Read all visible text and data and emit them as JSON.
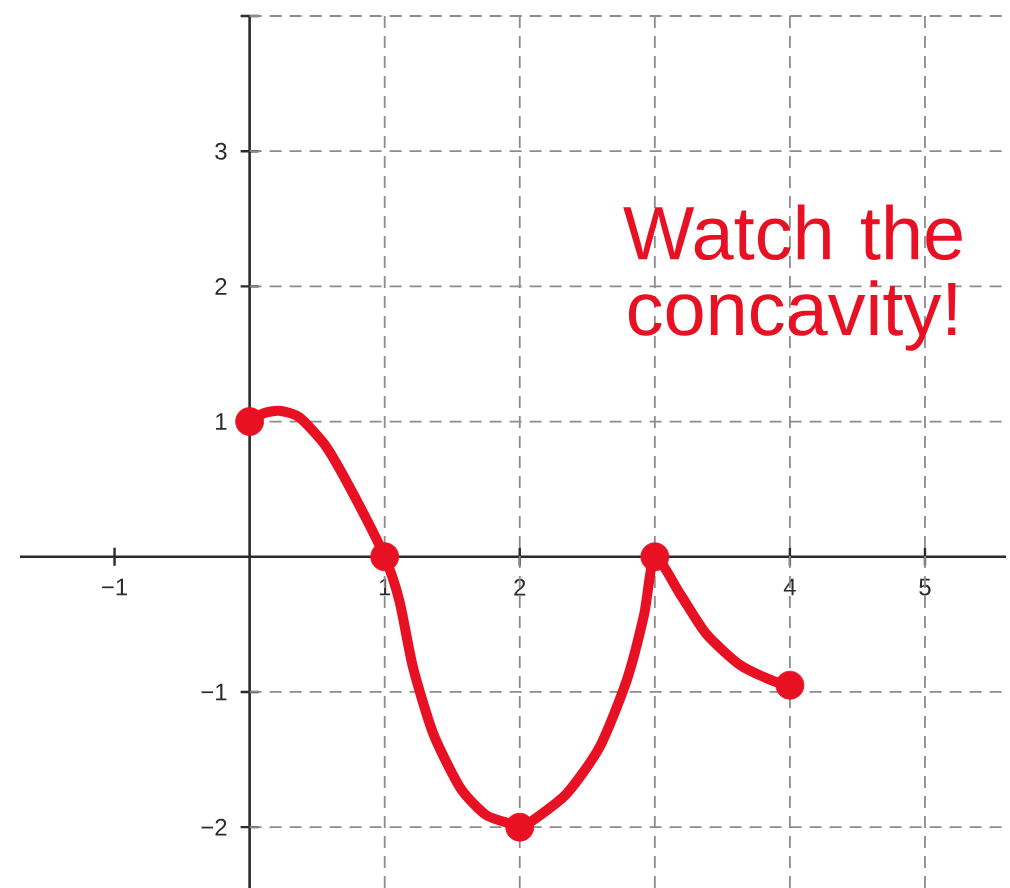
{
  "chart_data": {
    "type": "line",
    "series": [
      {
        "color": "#e81123",
        "x": [
          0,
          0.1,
          0.22,
          0.37,
          0.57,
          0.77,
          1,
          1.11,
          1.21,
          1.36,
          1.56,
          1.75,
          1.95,
          2,
          2.04,
          2.34,
          2.59,
          2.79,
          2.92,
          3,
          3.19,
          3.38,
          3.63,
          3.88,
          4
        ],
        "values": [
          1,
          1.06,
          1.08,
          1.03,
          0.81,
          0.46,
          0,
          -0.33,
          -0.82,
          -1.31,
          -1.71,
          -1.91,
          -1.98,
          -2,
          -1.99,
          -1.76,
          -1.41,
          -0.92,
          -0.43,
          0,
          -0.28,
          -0.57,
          -0.8,
          -0.92,
          -0.95
        ],
        "marker": "none",
        "line_style": "solid"
      },
      {
        "type": "scatter",
        "color": "#e81123",
        "x": [
          0,
          1,
          2,
          3,
          4
        ],
        "values": [
          1,
          0,
          -2,
          0,
          -0.95
        ],
        "marker": "circle"
      }
    ],
    "xlim": [
      -1.7,
      5.6
    ],
    "ylim": [
      -2.45,
      4
    ],
    "xticks": [
      {
        "value": -1,
        "label": "−1"
      },
      1,
      2,
      {
        "value": 3,
        "label": null
      },
      4,
      5
    ],
    "yticks": [
      {
        "value": -2,
        "label": "−2"
      },
      {
        "value": -1,
        "label": "−1"
      },
      1,
      2,
      3,
      {
        "value": 4,
        "label": null
      }
    ],
    "grid": true,
    "annotations": [
      "Watch the concavity!"
    ]
  }
}
